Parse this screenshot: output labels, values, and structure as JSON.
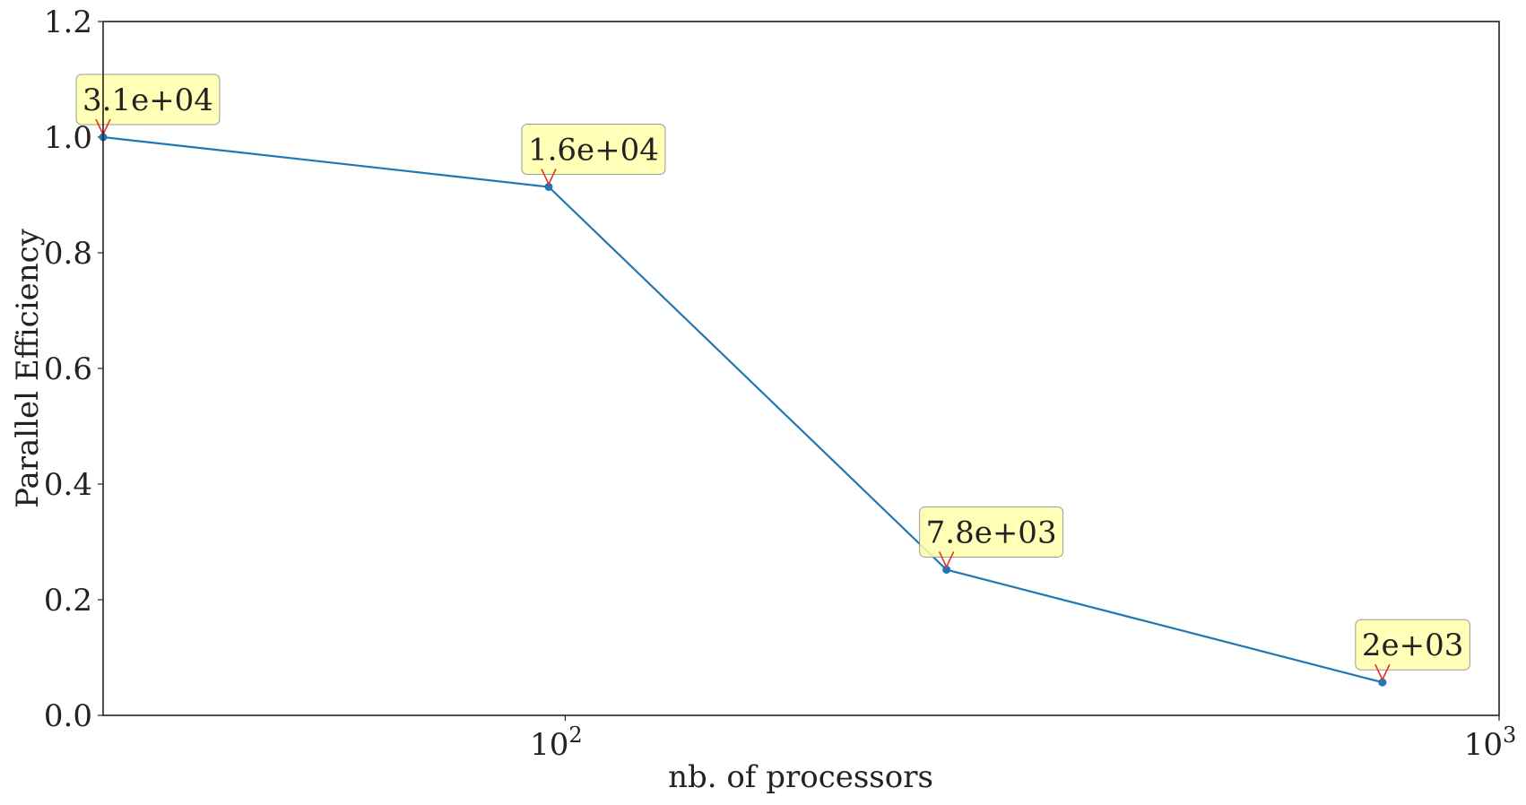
{
  "chart_data": {
    "type": "line",
    "title": "",
    "xlabel": "nb. of processors",
    "ylabel": "Parallel Efficiency",
    "xscale": "log",
    "xlim": [
      32,
      1000
    ],
    "ylim": [
      0.0,
      1.2
    ],
    "grid": false,
    "x": [
      32,
      96,
      256,
      750
    ],
    "series": [
      {
        "values": [
          1.0,
          0.914,
          0.252,
          0.057
        ],
        "color": "#1f77b4"
      }
    ],
    "annotations": [
      {
        "x": 32,
        "y": 1.0,
        "text": "3.1e+04"
      },
      {
        "x": 96,
        "y": 0.914,
        "text": "1.6e+04"
      },
      {
        "x": 256,
        "y": 0.252,
        "text": "7.8e+03"
      },
      {
        "x": 750,
        "y": 0.057,
        "text": "2e+03"
      }
    ],
    "yticks": [
      "0.0",
      "0.2",
      "0.4",
      "0.6",
      "0.8",
      "1.0",
      "1.2"
    ],
    "ytick_values": [
      0.0,
      0.2,
      0.4,
      0.6,
      0.8,
      1.0,
      1.2
    ],
    "xticks": [
      {
        "value": 100,
        "base": "10",
        "exp": "2"
      },
      {
        "value": 1000,
        "base": "10",
        "exp": "3"
      }
    ],
    "annotation_style": {
      "box_color": "#ffffaa",
      "arrow_color": "#e8301a"
    }
  }
}
